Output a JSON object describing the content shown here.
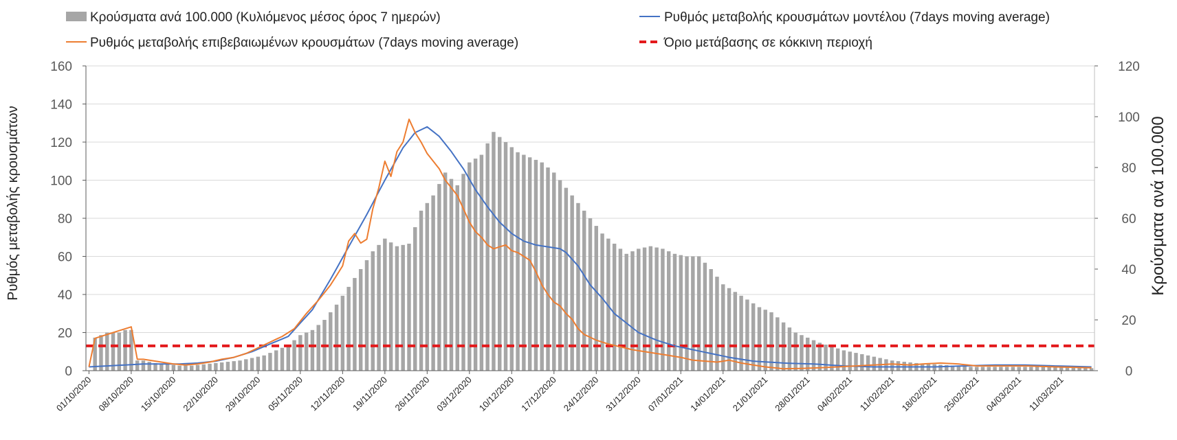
{
  "chart_data": {
    "type": "bar+line",
    "legend": {
      "bars_label": "Κρούσματα ανά 100.000 (Κυλιόμενος μέσος όρος 7 ημερών)",
      "model_label": "Ρυθμός μεταβολής κρουσμάτων μοντέλου (7days moving average)",
      "confirmed_label": "Ρυθμός μεταβολής επιβεβαιωμένων κρουσμάτων (7days moving average)",
      "threshold_label": "Όριο μετάβασης σε κόκκινη περιοχή"
    },
    "y_left": {
      "label": "Ρυθμός μεταβολής κρουσμάτων",
      "range": [
        0,
        160
      ],
      "ticks": [
        "0",
        "20",
        "40",
        "60",
        "80",
        "100",
        "120",
        "140",
        "160"
      ]
    },
    "y_right": {
      "label": "Κρούσματα ανά 100.000",
      "range": [
        0,
        120
      ],
      "ticks": [
        "0",
        "20",
        "40",
        "60",
        "80",
        "100",
        "120"
      ]
    },
    "x_tick_labels": [
      "01/10/2020",
      "08/10/2020",
      "15/10/2020",
      "22/10/2020",
      "29/10/2020",
      "05/11/2020",
      "12/11/2020",
      "19/11/2020",
      "26/11/2020",
      "03/12/2020",
      "10/12/2020",
      "17/12/2020",
      "24/12/2020",
      "31/12/2020",
      "07/01/2021",
      "14/01/2021",
      "21/01/2021",
      "28/01/2021",
      "04/02/2021",
      "11/02/2021",
      "18/02/2021",
      "25/02/2021",
      "04/03/2021",
      "11/03/2021"
    ],
    "days": 167,
    "series": [
      {
        "name": "Κρούσματα ανά 100.000 (Κυλιόμενος μέσος όρος 7 ημερών)",
        "kind": "bar",
        "axis": "right",
        "color": "#a6a6a6",
        "key_points": [
          [
            0,
            0
          ],
          [
            1,
            13
          ],
          [
            2,
            14
          ],
          [
            3,
            15
          ],
          [
            4,
            15
          ],
          [
            5,
            15
          ],
          [
            6,
            16
          ],
          [
            7,
            16
          ],
          [
            8,
            4
          ],
          [
            9,
            4
          ],
          [
            10,
            3.5
          ],
          [
            11,
            3
          ],
          [
            13,
            2.5
          ],
          [
            15,
            2
          ],
          [
            17,
            2
          ],
          [
            19,
            2.5
          ],
          [
            21,
            3
          ],
          [
            23,
            3.5
          ],
          [
            25,
            4
          ],
          [
            27,
            5
          ],
          [
            29,
            6
          ],
          [
            31,
            8
          ],
          [
            33,
            10
          ],
          [
            35,
            14
          ],
          [
            37,
            16
          ],
          [
            39,
            20
          ],
          [
            41,
            26
          ],
          [
            43,
            33
          ],
          [
            45,
            40
          ],
          [
            47,
            47
          ],
          [
            49,
            52
          ],
          [
            51,
            49
          ],
          [
            53,
            50
          ],
          [
            55,
            63
          ],
          [
            57,
            69
          ],
          [
            59,
            78
          ],
          [
            61,
            73
          ],
          [
            63,
            82
          ],
          [
            65,
            85
          ],
          [
            67,
            94
          ],
          [
            69,
            90
          ],
          [
            71,
            86
          ],
          [
            73,
            84
          ],
          [
            75,
            82
          ],
          [
            77,
            78
          ],
          [
            79,
            72
          ],
          [
            81,
            66
          ],
          [
            83,
            60
          ],
          [
            85,
            54
          ],
          [
            87,
            50
          ],
          [
            89,
            46
          ],
          [
            91,
            48
          ],
          [
            93,
            49
          ],
          [
            95,
            48
          ],
          [
            97,
            46
          ],
          [
            99,
            45
          ],
          [
            101,
            45
          ],
          [
            103,
            40
          ],
          [
            105,
            34
          ],
          [
            107,
            31
          ],
          [
            109,
            28
          ],
          [
            111,
            25
          ],
          [
            113,
            23
          ],
          [
            115,
            19
          ],
          [
            117,
            15
          ],
          [
            119,
            13
          ],
          [
            121,
            11
          ],
          [
            123,
            9.5
          ],
          [
            125,
            8
          ],
          [
            127,
            7
          ],
          [
            129,
            6
          ],
          [
            131,
            5
          ],
          [
            133,
            4
          ],
          [
            135,
            3.5
          ],
          [
            137,
            3
          ],
          [
            140,
            2.5
          ],
          [
            143,
            2
          ],
          [
            146,
            1.5
          ],
          [
            150,
            1.5
          ],
          [
            155,
            1.5
          ],
          [
            160,
            1.5
          ],
          [
            163,
            1.2
          ],
          [
            166,
            1
          ]
        ]
      },
      {
        "name": "Ρυθμός μεταβολής κρουσμάτων μοντέλου (7days moving average)",
        "kind": "line",
        "axis": "left",
        "color": "#4472c4",
        "key_points": [
          [
            0,
            2
          ],
          [
            3,
            2.5
          ],
          [
            6,
            3
          ],
          [
            9,
            3.5
          ],
          [
            12,
            3.5
          ],
          [
            15,
            3.5
          ],
          [
            18,
            4
          ],
          [
            21,
            5
          ],
          [
            24,
            7
          ],
          [
            27,
            10
          ],
          [
            30,
            14
          ],
          [
            33,
            18
          ],
          [
            35,
            25
          ],
          [
            37,
            32
          ],
          [
            40,
            48
          ],
          [
            43,
            65
          ],
          [
            46,
            82
          ],
          [
            49,
            100
          ],
          [
            52,
            117
          ],
          [
            54,
            125
          ],
          [
            56,
            128
          ],
          [
            58,
            123
          ],
          [
            60,
            115
          ],
          [
            62,
            106
          ],
          [
            64,
            95
          ],
          [
            66,
            86
          ],
          [
            68,
            78
          ],
          [
            70,
            72
          ],
          [
            72,
            68
          ],
          [
            74,
            66
          ],
          [
            76,
            65
          ],
          [
            78,
            64
          ],
          [
            79,
            62
          ],
          [
            81,
            55
          ],
          [
            83,
            45
          ],
          [
            85,
            38
          ],
          [
            87,
            30
          ],
          [
            89,
            25
          ],
          [
            91,
            20
          ],
          [
            94,
            16
          ],
          [
            97,
            13
          ],
          [
            100,
            11
          ],
          [
            103,
            9
          ],
          [
            106,
            7
          ],
          [
            110,
            5
          ],
          [
            115,
            4
          ],
          [
            120,
            3.5
          ],
          [
            125,
            2.5
          ],
          [
            130,
            2
          ],
          [
            140,
            2
          ],
          [
            150,
            3
          ],
          [
            155,
            3
          ],
          [
            160,
            2.5
          ],
          [
            166,
            2
          ]
        ]
      },
      {
        "name": "Ρυθμός μεταβολής επιβεβαιωμένων κρουσμάτων (7days moving average)",
        "kind": "line",
        "axis": "left",
        "color": "#ed7d31",
        "key_points": [
          [
            0,
            2
          ],
          [
            1,
            17
          ],
          [
            2,
            18
          ],
          [
            3,
            19
          ],
          [
            4,
            20
          ],
          [
            5,
            21
          ],
          [
            6,
            22
          ],
          [
            7,
            23
          ],
          [
            8,
            6
          ],
          [
            9,
            6
          ],
          [
            10,
            5.5
          ],
          [
            11,
            5
          ],
          [
            12,
            4.5
          ],
          [
            14,
            3.5
          ],
          [
            16,
            3
          ],
          [
            18,
            3.5
          ],
          [
            20,
            4.5
          ],
          [
            22,
            6
          ],
          [
            24,
            7
          ],
          [
            26,
            9
          ],
          [
            28,
            12
          ],
          [
            30,
            15
          ],
          [
            32,
            18
          ],
          [
            34,
            22
          ],
          [
            36,
            30
          ],
          [
            38,
            37
          ],
          [
            40,
            45
          ],
          [
            42,
            55
          ],
          [
            43,
            68
          ],
          [
            44,
            72
          ],
          [
            45,
            67
          ],
          [
            46,
            69
          ],
          [
            47,
            85
          ],
          [
            48,
            96
          ],
          [
            49,
            110
          ],
          [
            50,
            102
          ],
          [
            51,
            115
          ],
          [
            52,
            120
          ],
          [
            53,
            132
          ],
          [
            54,
            125
          ],
          [
            55,
            120
          ],
          [
            56,
            114
          ],
          [
            57,
            110
          ],
          [
            58,
            106
          ],
          [
            59,
            100
          ],
          [
            60,
            96
          ],
          [
            61,
            92
          ],
          [
            62,
            85
          ],
          [
            63,
            78
          ],
          [
            64,
            73
          ],
          [
            65,
            70
          ],
          [
            66,
            66
          ],
          [
            67,
            64
          ],
          [
            68,
            65
          ],
          [
            69,
            66
          ],
          [
            70,
            63
          ],
          [
            71,
            62
          ],
          [
            72,
            60
          ],
          [
            73,
            58
          ],
          [
            74,
            52
          ],
          [
            75,
            45
          ],
          [
            76,
            40
          ],
          [
            77,
            36
          ],
          [
            78,
            34
          ],
          [
            79,
            30
          ],
          [
            80,
            27
          ],
          [
            81,
            22
          ],
          [
            82,
            19
          ],
          [
            84,
            16
          ],
          [
            86,
            14
          ],
          [
            88,
            12.5
          ],
          [
            90,
            11
          ],
          [
            92,
            10
          ],
          [
            94,
            9
          ],
          [
            96,
            8
          ],
          [
            98,
            7
          ],
          [
            100,
            5.5
          ],
          [
            102,
            5
          ],
          [
            104,
            4.5
          ],
          [
            106,
            5.5
          ],
          [
            108,
            4
          ],
          [
            110,
            3
          ],
          [
            112,
            2
          ],
          [
            115,
            1
          ],
          [
            118,
            1.2
          ],
          [
            121,
            1.5
          ],
          [
            124,
            2
          ],
          [
            127,
            2.5
          ],
          [
            130,
            3
          ],
          [
            133,
            3.5
          ],
          [
            136,
            3
          ],
          [
            138,
            3.5
          ],
          [
            141,
            4
          ],
          [
            144,
            3.5
          ],
          [
            147,
            2.5
          ],
          [
            150,
            2.5
          ],
          [
            155,
            2.5
          ],
          [
            160,
            2
          ],
          [
            166,
            1.5
          ]
        ]
      },
      {
        "name": "Όριο μετάβασης σε κόκκινη περιοχή",
        "kind": "threshold",
        "axis": "left",
        "color": "#e31a1c",
        "value": 13
      }
    ],
    "grid": true
  }
}
